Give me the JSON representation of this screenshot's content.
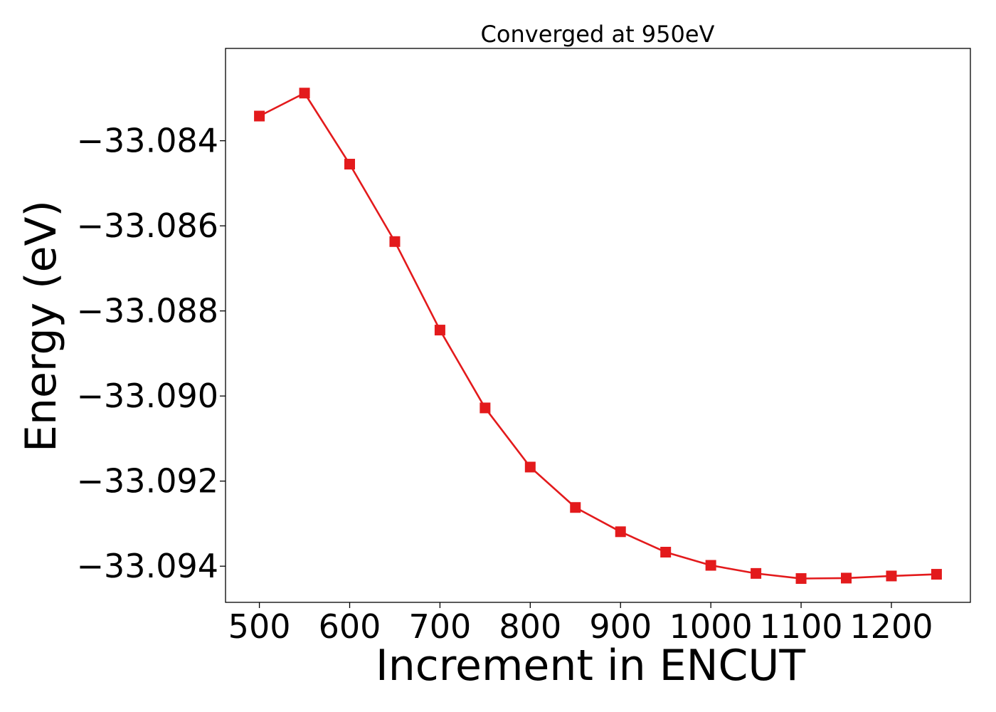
{
  "chart_data": {
    "type": "line",
    "title": "Converged at 950eV",
    "xlabel": "Increment in ENCUT",
    "ylabel": "Energy (eV)",
    "xlim": [
      462.5,
      1287.5
    ],
    "ylim": [
      -33.09485,
      -33.08183
    ],
    "xticks": [
      500,
      600,
      700,
      800,
      900,
      1000,
      1100,
      1200
    ],
    "xtick_labels": [
      "500",
      "600",
      "700",
      "800",
      "900",
      "1000",
      "1100",
      "1200"
    ],
    "yticks": [
      -33.084,
      -33.086,
      -33.088,
      -33.09,
      -33.092,
      -33.094
    ],
    "ytick_labels": [
      "−33.084",
      "−33.086",
      "−33.088",
      "−33.090",
      "−33.092",
      "−33.094"
    ],
    "grid": false,
    "series": [
      {
        "color": "#e31a1c",
        "marker": "square",
        "x": [
          500,
          550,
          600,
          650,
          700,
          750,
          800,
          850,
          900,
          950,
          1000,
          1050,
          1100,
          1150,
          1200,
          1250
        ],
        "y": [
          -33.08342,
          -33.08288,
          -33.08455,
          -33.08637,
          -33.08845,
          -33.09028,
          -33.09167,
          -33.09262,
          -33.09319,
          -33.09367,
          -33.09398,
          -33.09417,
          -33.09429,
          -33.09428,
          -33.09423,
          -33.09419
        ]
      }
    ]
  }
}
